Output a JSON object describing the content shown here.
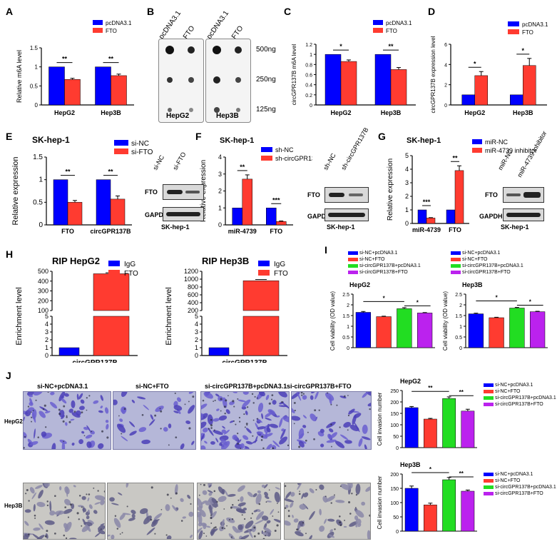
{
  "colors": {
    "blue": "#0000ff",
    "red": "#ff3b30",
    "green": "#22dd22",
    "purple": "#bb22ee",
    "black": "#000000"
  },
  "panels": {
    "A": {
      "letter": "A",
      "ylabel": "Relative m6A level",
      "groups": [
        "HepG2",
        "Hep3B"
      ],
      "legend": [
        "pcDNA3.1",
        "FTO"
      ],
      "sig": [
        "**",
        "**"
      ]
    },
    "B": {
      "letter": "B",
      "lanes": [
        "pcDNA3.1",
        "FTO",
        "pcDNA3.1",
        "FTO"
      ],
      "amounts": [
        "500ng",
        "250ng",
        "125ng"
      ],
      "cells": [
        "HepG2",
        "Hep3B"
      ]
    },
    "C": {
      "letter": "C",
      "ylabel": "circGPR137B m6A level",
      "groups": [
        "HepG2",
        "Hep3B"
      ],
      "legend": [
        "pcDNA3.1",
        "FTO"
      ],
      "sig": [
        "*",
        "**"
      ]
    },
    "D": {
      "letter": "D",
      "ylabel": "circGPR137B expression level",
      "groups": [
        "HepG2",
        "Hep3B"
      ],
      "legend": [
        "pcDNA3.1",
        "FTO"
      ],
      "sig": [
        "*",
        "*"
      ]
    },
    "E": {
      "letter": "E",
      "title": "SK-hep-1",
      "ylabel": "Relative expression",
      "groups": [
        "FTO",
        "circGPR137B"
      ],
      "legend": [
        "si-NC",
        "si-FTO"
      ],
      "sig": [
        "**",
        "**"
      ],
      "blot_lanes": [
        "si-NC",
        "si-FTO"
      ],
      "blot_rows": [
        "FTO",
        "GAPDH"
      ],
      "blot_cell": "SK-hep-1"
    },
    "F": {
      "letter": "F",
      "title": "SK-hep-1",
      "ylabel": "Relative expression",
      "groups": [
        "miR-4739",
        "FTO"
      ],
      "legend": [
        "sh-NC",
        "sh-circGPR137B"
      ],
      "sig": [
        "**",
        "***"
      ],
      "blot_lanes": [
        "sh-NC",
        "sh-circGPR137B"
      ],
      "blot_rows": [
        "FTO",
        "GAPDH"
      ],
      "blot_cell": "SK-hep-1"
    },
    "G": {
      "letter": "G",
      "title": "SK-hep-1",
      "ylabel": "Relative expression",
      "groups": [
        "miR-4739",
        "FTO"
      ],
      "legend": [
        "miR-NC",
        "miR-4739 inhibitor"
      ],
      "sig": [
        "***",
        "**"
      ],
      "blot_lanes": [
        "miR-NC",
        "miR-4739 inhibitor"
      ],
      "blot_rows": [
        "FTO",
        "GAPDH"
      ],
      "blot_cell": "SK-hep-1"
    },
    "H": {
      "letter": "H",
      "titles": [
        "RIP HepG2",
        "RIP Hep3B"
      ],
      "ylabel": "Enrichment level",
      "category": "circGPR137B",
      "legend": [
        "IgG",
        "FTO"
      ]
    },
    "I": {
      "letter": "I",
      "cells": [
        "HepG2",
        "Hep3B"
      ],
      "ylabel": "Cell viability (OD value)",
      "legend": [
        "si-NC+pcDNA3.1",
        "si-NC+FTO",
        "si-circGPR137B+pcDNA3.1",
        "si-circGPR137B+FTO"
      ],
      "sig": [
        "*",
        "*"
      ]
    },
    "J": {
      "letter": "J",
      "columns": [
        "si-NC+pcDNA3.1",
        "si-NC+FTO",
        "si-circGPR137B+pcDNA3.1",
        "si-circGPR137B+FTO"
      ],
      "rows": [
        "HepG2",
        "Hep3B"
      ],
      "ylabel": "Cell invasion number",
      "legend": [
        "si-NC+pcDNA3.1",
        "si-NC+FTO",
        "si-circGPR137B+pcDNA3.1",
        "si-circGPR137B+FTO"
      ],
      "sig_hepg2": [
        "**",
        "**"
      ],
      "sig_hep3b": [
        "*",
        "**"
      ]
    }
  },
  "chart_data": [
    {
      "id": "A",
      "type": "bar",
      "categories": [
        "HepG2",
        "Hep3B"
      ],
      "series": [
        {
          "name": "pcDNA3.1",
          "values": [
            1.0,
            1.0
          ],
          "err": [
            0,
            0
          ]
        },
        {
          "name": "FTO",
          "values": [
            0.67,
            0.77
          ],
          "err": [
            0.03,
            0.04
          ]
        }
      ],
      "ylim": [
        0,
        1.5
      ],
      "yticks": [
        0,
        0.5,
        1.0,
        1.5
      ],
      "ylabel": "Relative m6A level",
      "legend_position": "top-right"
    },
    {
      "id": "C",
      "type": "bar",
      "categories": [
        "HepG2",
        "Hep3B"
      ],
      "series": [
        {
          "name": "pcDNA3.1",
          "values": [
            1.0,
            1.0
          ],
          "err": [
            0,
            0
          ]
        },
        {
          "name": "FTO",
          "values": [
            0.86,
            0.7
          ],
          "err": [
            0.03,
            0.04
          ]
        }
      ],
      "ylim": [
        0,
        1.2
      ],
      "yticks": [
        0,
        0.2,
        0.4,
        0.6,
        0.8,
        1.0,
        1.2
      ],
      "ylabel": "circGPR137B m6A level",
      "legend_position": "top-right"
    },
    {
      "id": "D",
      "type": "bar",
      "categories": [
        "HepG2",
        "Hep3B"
      ],
      "series": [
        {
          "name": "pcDNA3.1",
          "values": [
            1.0,
            1.0
          ],
          "err": [
            0,
            0
          ]
        },
        {
          "name": "FTO",
          "values": [
            2.9,
            3.9
          ],
          "err": [
            0.4,
            0.7
          ]
        }
      ],
      "ylim": [
        0,
        6
      ],
      "yticks": [
        0,
        2,
        4,
        6
      ],
      "ylabel": "circGPR137B expression level",
      "legend_position": "top-right"
    },
    {
      "id": "E",
      "type": "bar",
      "title": "SK-hep-1",
      "categories": [
        "FTO",
        "circGPR137B"
      ],
      "series": [
        {
          "name": "si-NC",
          "values": [
            1.0,
            1.0
          ],
          "err": [
            0,
            0
          ]
        },
        {
          "name": "si-FTO",
          "values": [
            0.5,
            0.57
          ],
          "err": [
            0.04,
            0.07
          ]
        }
      ],
      "ylim": [
        0,
        1.5
      ],
      "yticks": [
        0,
        0.5,
        1.0,
        1.5
      ],
      "ylabel": "Relative expression",
      "legend_position": "top-right"
    },
    {
      "id": "F",
      "type": "bar",
      "title": "SK-hep-1",
      "categories": [
        "miR-4739",
        "FTO"
      ],
      "series": [
        {
          "name": "sh-NC",
          "values": [
            1.0,
            1.0
          ],
          "err": [
            0,
            0
          ]
        },
        {
          "name": "sh-circGPR137B",
          "values": [
            2.7,
            0.2
          ],
          "err": [
            0.25,
            0.03
          ]
        }
      ],
      "ylim": [
        0,
        4
      ],
      "yticks": [
        0,
        1,
        2,
        3,
        4
      ],
      "ylabel": "Relative expression",
      "legend_position": "top-right"
    },
    {
      "id": "G",
      "type": "bar",
      "title": "SK-hep-1",
      "categories": [
        "miR-4739",
        "FTO"
      ],
      "series": [
        {
          "name": "miR-NC",
          "values": [
            1.0,
            1.0
          ],
          "err": [
            0,
            0
          ]
        },
        {
          "name": "miR-4739 inhibitor",
          "values": [
            0.4,
            3.9
          ],
          "err": [
            0.03,
            0.35
          ]
        }
      ],
      "ylim": [
        0,
        5
      ],
      "yticks": [
        0,
        1,
        2,
        3,
        4,
        5
      ],
      "ylabel": "Relative expression",
      "legend_position": "top-right"
    },
    {
      "id": "H1",
      "type": "bar",
      "title": "RIP HepG2",
      "categories": [
        "circGPR137B"
      ],
      "series": [
        {
          "name": "IgG",
          "values": [
            1
          ],
          "err": [
            0
          ]
        },
        {
          "name": "FTO",
          "values": [
            475
          ],
          "err": [
            10
          ]
        }
      ],
      "yticks": [
        0,
        1,
        2,
        3,
        4,
        5,
        100,
        200,
        300,
        400,
        500
      ],
      "ylabel": "Enrichment level",
      "broken_axis": true,
      "legend_position": "top-right"
    },
    {
      "id": "H2",
      "type": "bar",
      "title": "RIP Hep3B",
      "categories": [
        "circGPR137B"
      ],
      "series": [
        {
          "name": "IgG",
          "values": [
            1
          ],
          "err": [
            0
          ]
        },
        {
          "name": "FTO",
          "values": [
            960
          ],
          "err": [
            30
          ]
        }
      ],
      "yticks": [
        0,
        1,
        2,
        3,
        4,
        5,
        6,
        200,
        400,
        600,
        800,
        1000,
        1200
      ],
      "ylabel": "Enrichment level",
      "broken_axis": true,
      "legend_position": "top-right"
    },
    {
      "id": "I1",
      "type": "bar",
      "title": "HepG2",
      "categories": [
        "si-NC+pcDNA3.1",
        "si-NC+FTO",
        "si-circGPR137B+pcDNA3.1",
        "si-circGPR137B+FTO"
      ],
      "values": [
        1.65,
        1.45,
        1.82,
        1.62
      ],
      "err": [
        0.04,
        0.02,
        0.05,
        0.02
      ],
      "ylim": [
        0,
        2.5
      ],
      "yticks": [
        0,
        0.5,
        1.0,
        1.5,
        2.0,
        2.5
      ],
      "ylabel": "Cell viability (OD value)"
    },
    {
      "id": "I2",
      "type": "bar",
      "title": "Hep3B",
      "categories": [
        "si-NC+pcDNA3.1",
        "si-NC+FTO",
        "si-circGPR137B+pcDNA3.1",
        "si-circGPR137B+FTO"
      ],
      "values": [
        1.58,
        1.4,
        1.85,
        1.68
      ],
      "err": [
        0.03,
        0.02,
        0.03,
        0.02
      ],
      "ylim": [
        0,
        2.5
      ],
      "yticks": [
        0,
        0.5,
        1.0,
        1.5,
        2.0,
        2.5
      ],
      "ylabel": "Cell viability (OD value)"
    },
    {
      "id": "J1",
      "type": "bar",
      "title": "HepG2",
      "categories": [
        "si-NC+pcDNA3.1",
        "si-NC+FTO",
        "si-circGPR137B+pcDNA3.1",
        "si-circGPR137B+FTO"
      ],
      "values": [
        175,
        125,
        215,
        160
      ],
      "err": [
        5,
        3,
        7,
        8
      ],
      "ylim": [
        0,
        250
      ],
      "yticks": [
        0,
        50,
        100,
        150,
        200,
        250
      ],
      "ylabel": "Cell invasion number"
    },
    {
      "id": "J2",
      "type": "bar",
      "title": "Hep3B",
      "categories": [
        "si-NC+pcDNA3.1",
        "si-NC+FTO",
        "si-circGPR137B+pcDNA3.1",
        "si-circGPR137B+FTO"
      ],
      "values": [
        150,
        92,
        180,
        140
      ],
      "err": [
        8,
        6,
        8,
        4
      ],
      "ylim": [
        0,
        200
      ],
      "yticks": [
        0,
        50,
        100,
        150,
        200
      ],
      "ylabel": "Cell invasion number"
    }
  ]
}
